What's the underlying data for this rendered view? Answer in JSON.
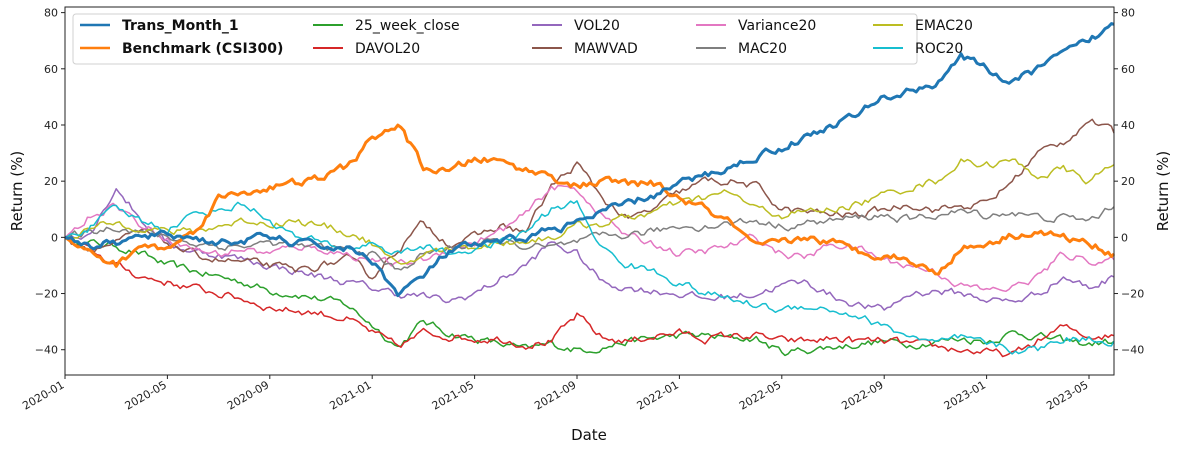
{
  "chart_data": {
    "type": "line",
    "title": "",
    "xlabel": "Date",
    "ylabel_left": "Return (%)",
    "ylabel_right": "Return (%)",
    "ylim": [
      -49,
      82
    ],
    "yticks": [
      -40,
      -20,
      0,
      20,
      40,
      60,
      80
    ],
    "ytick_labels": [
      "−40",
      "−20",
      "0",
      "20",
      "40",
      "60",
      "80"
    ],
    "xlim": [
      "2020-01",
      "2023-06"
    ],
    "xticks": [
      "2020-01",
      "2020-05",
      "2020-09",
      "2021-01",
      "2021-05",
      "2021-09",
      "2022-01",
      "2022-05",
      "2022-09",
      "2023-01",
      "2023-05"
    ],
    "xtick_month_index": [
      0,
      4,
      8,
      12,
      16,
      20,
      24,
      28,
      32,
      36,
      40
    ],
    "x_months": [
      "2020-01",
      "2020-02",
      "2020-03",
      "2020-04",
      "2020-05",
      "2020-06",
      "2020-07",
      "2020-08",
      "2020-09",
      "2020-10",
      "2020-11",
      "2020-12",
      "2021-01",
      "2021-02",
      "2021-03",
      "2021-04",
      "2021-05",
      "2021-06",
      "2021-07",
      "2021-08",
      "2021-09",
      "2021-10",
      "2021-11",
      "2021-12",
      "2022-01",
      "2022-02",
      "2022-03",
      "2022-04",
      "2022-05",
      "2022-06",
      "2022-07",
      "2022-08",
      "2022-09",
      "2022-10",
      "2022-11",
      "2022-12",
      "2023-01",
      "2023-02",
      "2023-03",
      "2023-04",
      "2023-05",
      "2023-06"
    ],
    "grid": false,
    "legend_position": "top-left",
    "legend_columns": 5,
    "series": [
      {
        "name": "Trans_Month_1",
        "color": "#1f77b4",
        "bold": true,
        "width": 3,
        "values": [
          0,
          -3,
          -2,
          0,
          1,
          0,
          -2,
          -1,
          0,
          -2,
          -3,
          -4,
          -8,
          -20,
          -14,
          -5,
          -3,
          -2,
          0,
          3,
          5,
          9,
          12,
          15,
          19,
          22,
          25,
          29,
          32,
          36,
          40,
          44,
          50,
          52,
          55,
          64,
          60,
          55,
          60,
          65,
          70,
          76
        ]
      },
      {
        "name": "Benchmark (CSI300)",
        "color": "#ff7f0e",
        "bold": true,
        "width": 3,
        "values": [
          0,
          -6,
          -10,
          -3,
          -4,
          2,
          14,
          16,
          18,
          19,
          21,
          25,
          35,
          40,
          25,
          23,
          28,
          27,
          24,
          22,
          18,
          20,
          19,
          19,
          14,
          10,
          5,
          -4,
          -2,
          0,
          -2,
          -5,
          -6,
          -8,
          -13,
          -4,
          -2,
          1,
          2,
          0,
          -2,
          -6
        ]
      },
      {
        "name": "25_week_close",
        "color": "#2ca02c",
        "bold": false,
        "width": 1.5,
        "values": [
          0,
          -2,
          -3,
          -6,
          -10,
          -12,
          -14,
          -16,
          -19,
          -20,
          -22,
          -24,
          -31,
          -39,
          -30,
          -34,
          -36,
          -38,
          -40,
          -38,
          -40,
          -39,
          -37,
          -36,
          -35,
          -35,
          -36,
          -36,
          -41,
          -40,
          -39,
          -38,
          -37,
          -38,
          -37,
          -36,
          -37,
          -34,
          -35,
          -37,
          -38,
          -37
        ]
      },
      {
        "name": "DAVOL20",
        "color": "#d62728",
        "bold": false,
        "width": 1.5,
        "values": [
          0,
          -5,
          -10,
          -14,
          -16,
          -18,
          -20,
          -22,
          -25,
          -26,
          -27,
          -29,
          -34,
          -39,
          -34,
          -35,
          -36,
          -36,
          -38,
          -37,
          -28,
          -36,
          -37,
          -35,
          -34,
          -36,
          -35,
          -35,
          -37,
          -37,
          -36,
          -37,
          -37,
          -38,
          -39,
          -40,
          -41,
          -42,
          -37,
          -32,
          -35,
          -35
        ]
      },
      {
        "name": "VOL20",
        "color": "#9467bd",
        "bold": false,
        "width": 1.5,
        "values": [
          0,
          2,
          18,
          6,
          -2,
          -5,
          -6,
          -8,
          -10,
          -12,
          -14,
          -16,
          -18,
          -20,
          -21,
          -23,
          -20,
          -15,
          -10,
          -2,
          -6,
          -16,
          -18,
          -19,
          -20,
          -22,
          -21,
          -20,
          -17,
          -16,
          -21,
          -24,
          -26,
          -20,
          -19,
          -20,
          -22,
          -23,
          -20,
          -14,
          -18,
          -14
        ]
      },
      {
        "name": "MAWVAD",
        "color": "#8c564b",
        "bold": false,
        "width": 1.5,
        "values": [
          0,
          -4,
          -2,
          2,
          -2,
          -6,
          -8,
          -9,
          -10,
          -12,
          -10,
          -8,
          -14,
          -4,
          5,
          -2,
          0,
          4,
          2,
          18,
          26,
          14,
          6,
          10,
          16,
          20,
          20,
          18,
          10,
          9,
          8,
          8,
          10,
          12,
          10,
          11,
          12,
          20,
          30,
          34,
          42,
          37
        ]
      },
      {
        "name": "Variance20",
        "color": "#e377c2",
        "bold": false,
        "width": 1.5,
        "values": [
          0,
          8,
          12,
          4,
          0,
          -4,
          -6,
          -4,
          -6,
          -3,
          -4,
          -6,
          -8,
          -10,
          -8,
          -4,
          -2,
          2,
          8,
          18,
          17,
          8,
          0,
          -2,
          -6,
          -5,
          -3,
          0,
          -6,
          -7,
          -2,
          -4,
          -8,
          -10,
          -12,
          -17,
          -19,
          -18,
          -14,
          -6,
          -8,
          -8
        ]
      },
      {
        "name": "MAC20",
        "color": "#7f7f7f",
        "bold": false,
        "width": 1.5,
        "values": [
          0,
          2,
          4,
          2,
          0,
          -2,
          -3,
          -3,
          -2,
          -3,
          -4,
          -4,
          -6,
          -12,
          -6,
          -4,
          -2,
          -2,
          -3,
          -4,
          -2,
          0,
          1,
          2,
          4,
          4,
          5,
          6,
          4,
          5,
          6,
          7,
          8,
          6,
          8,
          9,
          8,
          9,
          7,
          7,
          6,
          11
        ]
      },
      {
        "name": "EMAC20",
        "color": "#bcbd22",
        "bold": false,
        "width": 1.5,
        "values": [
          0,
          3,
          5,
          4,
          2,
          2,
          4,
          6,
          5,
          6,
          4,
          2,
          -2,
          -11,
          -6,
          -4,
          -3,
          -2,
          -1,
          0,
          4,
          5,
          7,
          9,
          12,
          14,
          16,
          10,
          8,
          9,
          10,
          12,
          15,
          18,
          20,
          27,
          26,
          27,
          22,
          24,
          20,
          26
        ]
      },
      {
        "name": "ROC20",
        "color": "#17becf",
        "bold": false,
        "width": 1.5,
        "values": [
          0,
          4,
          10,
          6,
          3,
          8,
          10,
          12,
          6,
          0,
          -2,
          -4,
          -2,
          -6,
          -3,
          -6,
          -4,
          -2,
          2,
          10,
          12,
          -4,
          -10,
          -12,
          -16,
          -20,
          -22,
          -24,
          -26,
          -24,
          -26,
          -28,
          -32,
          -35,
          -38,
          -36,
          -38,
          -40,
          -40,
          -36,
          -36,
          -37
        ]
      }
    ]
  }
}
